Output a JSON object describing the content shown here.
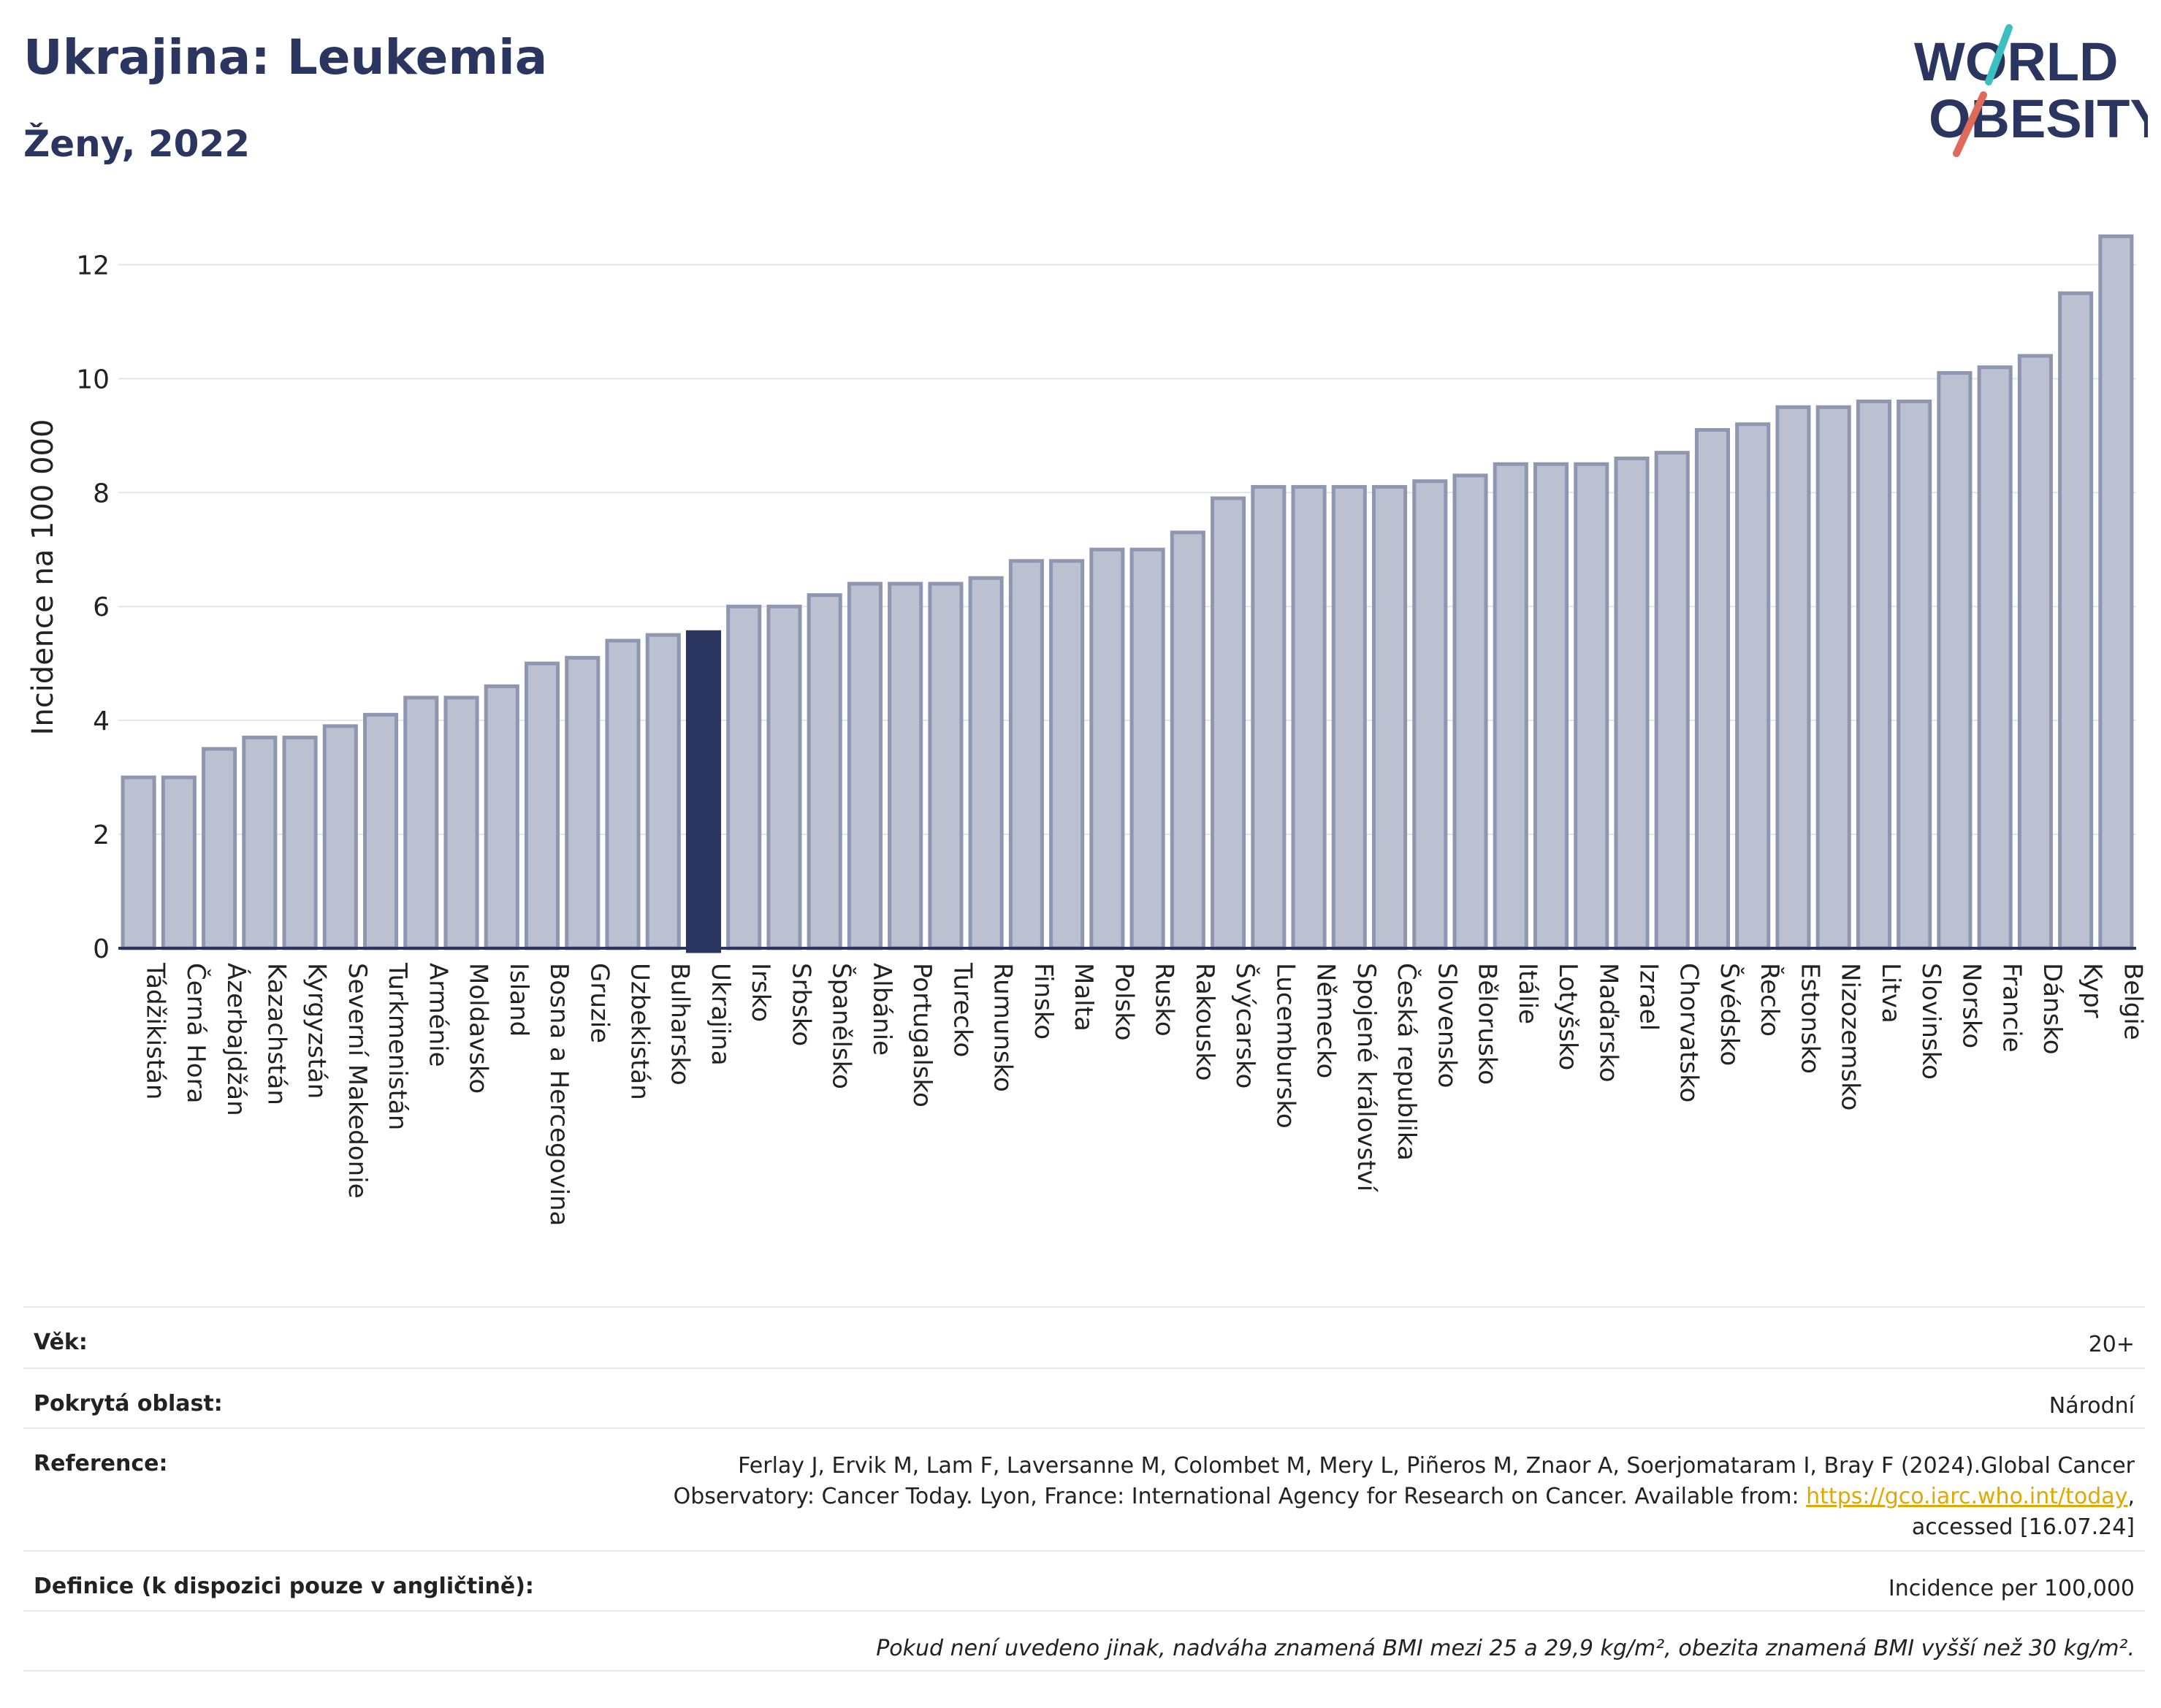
{
  "header": {
    "title": "Ukrajina: Leukemia",
    "subtitle": "Ženy, 2022"
  },
  "logo": {
    "line1": "WORLD",
    "line2": "OBESITY",
    "accent_teal": "#3bbfbf",
    "accent_red": "#e06a5a"
  },
  "colors": {
    "bar": "#bcc1d1",
    "bar_stroke": "#8f96b0",
    "highlight": "#2a3560",
    "grid": "#e3e5ec",
    "axis": "#2a3560"
  },
  "chart_data": {
    "type": "bar",
    "ylabel": "Incidence na 100 000",
    "ylim": [
      0,
      12.8
    ],
    "yticks": [
      0,
      2,
      4,
      6,
      8,
      10,
      12
    ],
    "grid": true,
    "highlight": "Ukrajina",
    "categories": [
      "Tádžikistán",
      "Černá Hora",
      "Ázerbajdžán",
      "Kazachstán",
      "Kyrgyzstán",
      "Severní Makedonie",
      "Turkmenistán",
      "Arménie",
      "Moldavsko",
      "Island",
      "Bosna a Hercegovina",
      "Gruzie",
      "Uzbekistán",
      "Bulharsko",
      "Ukrajina",
      "Irsko",
      "Srbsko",
      "Španělsko",
      "Albánie",
      "Portugalsko",
      "Turecko",
      "Rumunsko",
      "Finsko",
      "Malta",
      "Polsko",
      "Rusko",
      "Rakousko",
      "Švýcarsko",
      "Lucembursko",
      "Německo",
      "Spojené království",
      "Česká republika",
      "Slovensko",
      "Bělorusko",
      "Itálie",
      "Lotyšsko",
      "Maďarsko",
      "Izrael",
      "Chorvatsko",
      "Švédsko",
      "Řecko",
      "Estonsko",
      "Nizozemsko",
      "Litva",
      "Slovinsko",
      "Norsko",
      "Francie",
      "Dánsko",
      "Kypr",
      "Belgie"
    ],
    "values": [
      3.0,
      3.0,
      3.5,
      3.7,
      3.7,
      3.9,
      4.1,
      4.4,
      4.4,
      4.6,
      5.0,
      5.1,
      5.4,
      5.5,
      5.55,
      6.0,
      6.0,
      6.2,
      6.4,
      6.4,
      6.4,
      6.5,
      6.8,
      6.8,
      7.0,
      7.0,
      7.3,
      7.9,
      8.1,
      8.1,
      8.1,
      8.1,
      8.2,
      8.3,
      8.5,
      8.5,
      8.5,
      8.6,
      8.7,
      9.1,
      9.2,
      9.5,
      9.5,
      9.6,
      9.6,
      10.1,
      10.2,
      10.4,
      11.5,
      12.5
    ]
  },
  "info": {
    "age_label": "Věk:",
    "age_value": "20+",
    "area_label": "Pokrytá oblast:",
    "area_value": "Národní",
    "ref_label": "Reference:",
    "ref_text_1": "Ferlay J, Ervik M, Lam F, Laversanne M, Colombet M, Mery L, Piñeros M, Znaor A, Soerjomataram I, Bray F (2024).Global Cancer Observatory: Cancer Today. Lyon, France: International Agency for Research on Cancer. Available from: ",
    "ref_link": "https://gco.iarc.who.int/today",
    "ref_text_2": ", accessed [16.07.24]",
    "def_label": "Definice (k dispozici pouze v angličtině):",
    "def_value": "Incidence per 100,000",
    "note": "Pokud není uvedeno jinak, nadváha znamená BMI mezi 25 a 29,9 kg/m², obezita znamená BMI vyšší než 30 kg/m²."
  }
}
